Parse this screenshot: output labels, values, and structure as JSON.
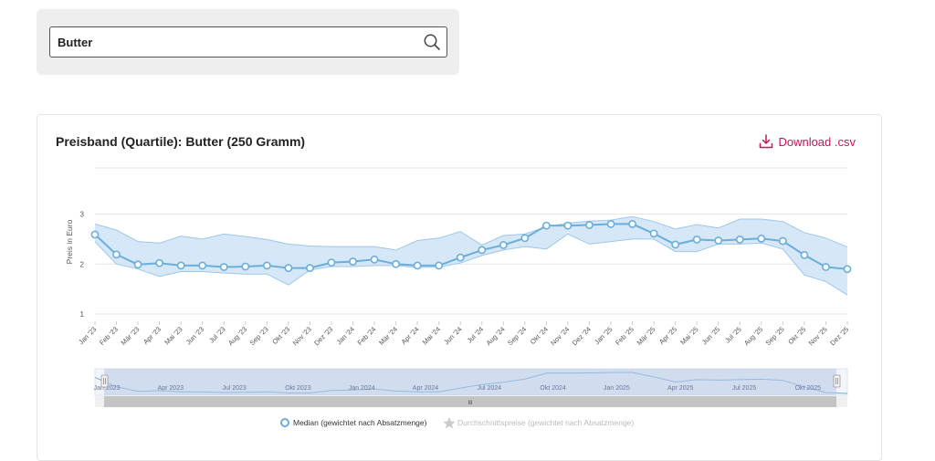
{
  "search": {
    "value": "Butter",
    "icon": "search-icon"
  },
  "download": {
    "label": "Download .csv",
    "icon": "download-icon",
    "color": "#c2185b"
  },
  "chart_data": {
    "type": "line",
    "title": "Preisband (Quartile): Butter (250 Gramm)",
    "xlabel": "",
    "ylabel": "Preis in Euro",
    "yticks": [
      1,
      2,
      3
    ],
    "ylim": [
      1,
      3.3
    ],
    "grid": true,
    "categories": [
      "Jan '23",
      "Feb '23",
      "Mär '23",
      "Apr '23",
      "Mai '23",
      "Jun '23",
      "Jul '23",
      "Aug '23",
      "Sep '23",
      "Okt '23",
      "Nov '23",
      "Dez '23",
      "Jan '24",
      "Feb '24",
      "Mär '24",
      "Apr '24",
      "Mai '24",
      "Jun '24",
      "Jul '24",
      "Aug '24",
      "Sep '24",
      "Okt '24",
      "Nov '24",
      "Dez '24",
      "Jan '25",
      "Feb '25",
      "Mär '25",
      "Apr '25",
      "Mai '25",
      "Jun '25",
      "Jul '25",
      "Aug '25",
      "Sep '25",
      "Okt '25",
      "Nov '25",
      "Dez '25"
    ],
    "series": [
      {
        "name": "Median (gewichtet nach Absatzmenge)",
        "values": [
          2.59,
          2.19,
          1.99,
          2.02,
          1.97,
          1.97,
          1.94,
          1.95,
          1.97,
          1.92,
          1.92,
          2.03,
          2.05,
          2.09,
          2.0,
          1.97,
          1.97,
          2.13,
          2.28,
          2.38,
          2.52,
          2.77,
          2.77,
          2.78,
          2.8,
          2.8,
          2.61,
          2.39,
          2.49,
          2.47,
          2.49,
          2.51,
          2.46,
          2.18,
          1.94,
          1.9
        ],
        "color": "#6aaedb"
      }
    ],
    "band": {
      "upper": [
        2.8,
        2.68,
        2.45,
        2.42,
        2.56,
        2.5,
        2.6,
        2.55,
        2.49,
        2.4,
        2.36,
        2.35,
        2.35,
        2.35,
        2.28,
        2.47,
        2.52,
        2.65,
        2.38,
        2.57,
        2.6,
        2.75,
        2.82,
        2.86,
        2.88,
        2.95,
        2.85,
        2.7,
        2.79,
        2.72,
        2.9,
        2.9,
        2.85,
        2.63,
        2.52,
        2.34
      ],
      "lower": [
        2.45,
        2.0,
        1.9,
        1.75,
        1.85,
        1.85,
        1.82,
        1.8,
        1.8,
        1.58,
        1.88,
        1.95,
        1.95,
        1.97,
        1.97,
        1.93,
        1.94,
        2.02,
        2.17,
        2.28,
        2.35,
        2.3,
        2.6,
        2.4,
        2.45,
        2.5,
        2.5,
        2.25,
        2.25,
        2.4,
        2.4,
        2.42,
        2.3,
        1.78,
        1.65,
        1.38
      ],
      "fill": "#cfe3f6",
      "stroke": "#9cc7ea"
    },
    "navigator": {
      "labels": [
        "Jan 2023",
        "Apr 2023",
        "Jul 2023",
        "Okt 2023",
        "Jan 2024",
        "Apr 2024",
        "Jul 2024",
        "Okt 2024",
        "Jan 2025",
        "Apr 2025",
        "Jul 2025",
        "Okt 2025"
      ],
      "handle_glyph": "III"
    },
    "legend": [
      {
        "label": "Median (gewichtet nach Absatzmenge)",
        "symbol": "circle",
        "active": true
      },
      {
        "label": "Durchschnittspreise (gewichtet nach Absatzmenge)",
        "symbol": "star",
        "active": false
      }
    ],
    "legend_position": "bottom-center"
  }
}
